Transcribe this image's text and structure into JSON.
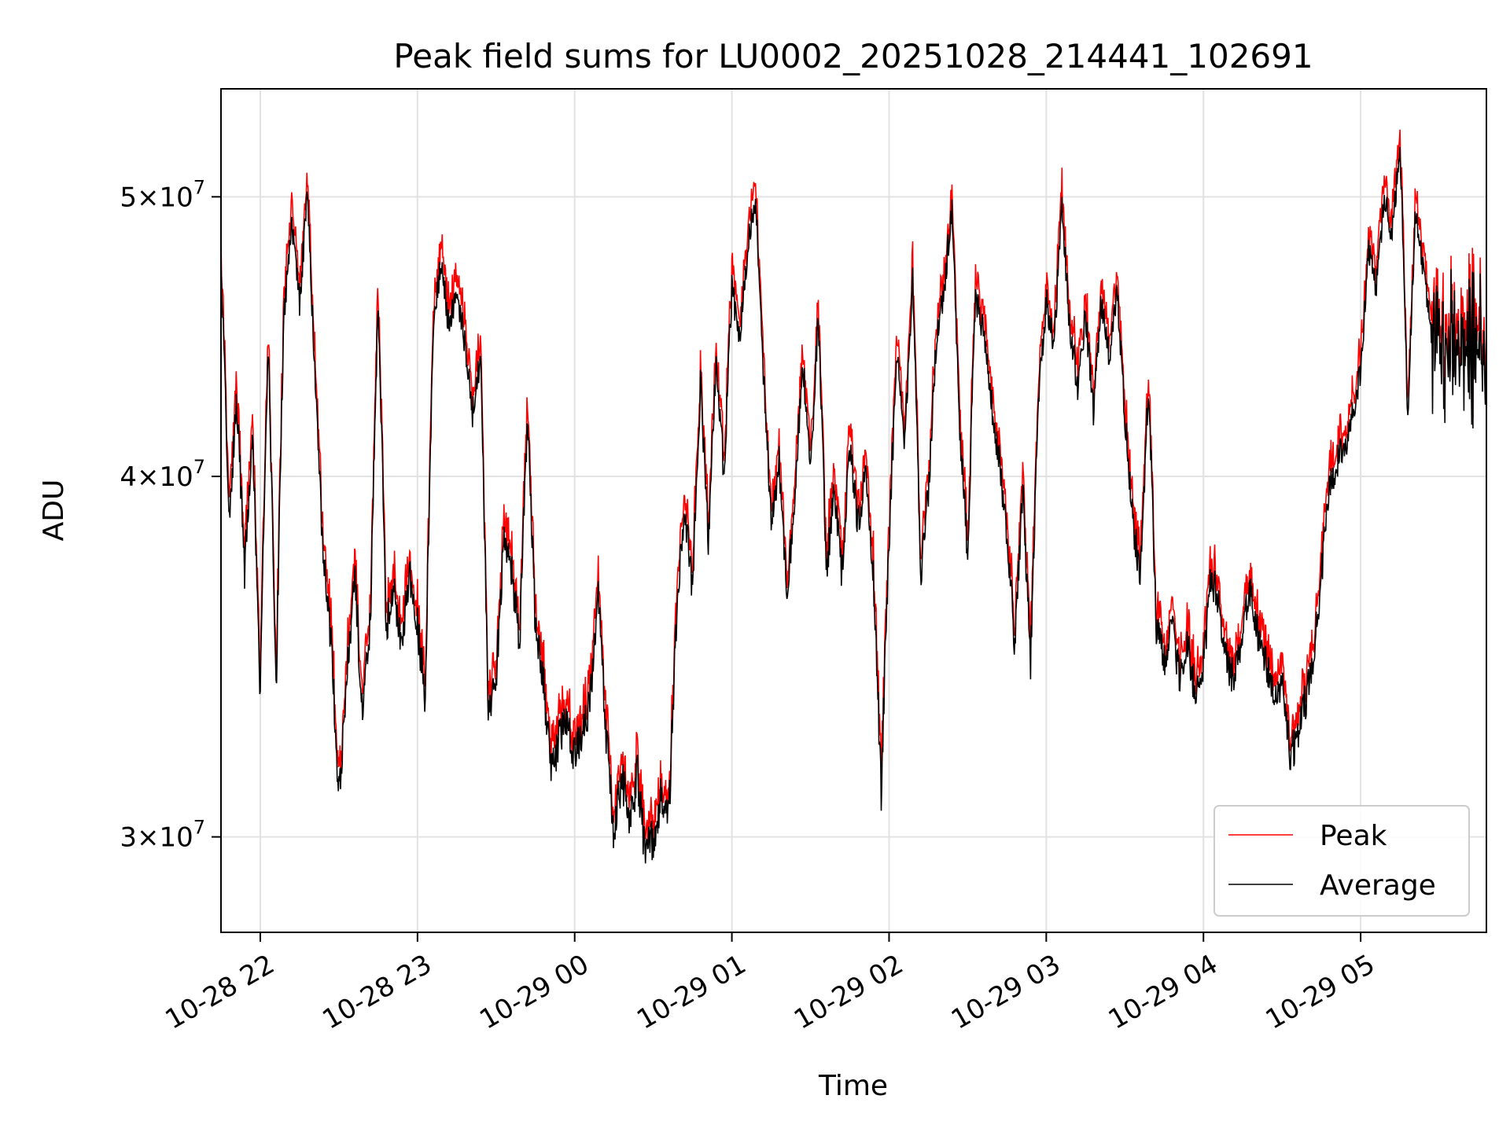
{
  "chart_data": {
    "type": "line",
    "title": "Peak field sums for LU0002_20251028_214441_102691",
    "xlabel": "Time",
    "ylabel": "ADU",
    "yscale": "log",
    "grid": true,
    "legend_position": "lower-right",
    "x_unit": "hours since 2025-10-28 22:00",
    "xlim": [
      -0.25,
      7.8
    ],
    "ylim": [
      27800000,
      54500000
    ],
    "x_ticks": [
      {
        "value": 0,
        "label": "10-28 22"
      },
      {
        "value": 1,
        "label": "10-28 23"
      },
      {
        "value": 2,
        "label": "10-29 00"
      },
      {
        "value": 3,
        "label": "10-29 01"
      },
      {
        "value": 4,
        "label": "10-29 02"
      },
      {
        "value": 5,
        "label": "10-29 03"
      },
      {
        "value": 6,
        "label": "10-29 04"
      },
      {
        "value": 7,
        "label": "10-29 05"
      }
    ],
    "y_ticks": [
      {
        "value": 30000000,
        "mant": "3",
        "exp": "7"
      },
      {
        "value": 40000000,
        "mant": "4",
        "exp": "7"
      },
      {
        "value": 50000000,
        "mant": "5",
        "exp": "7"
      }
    ],
    "y_tick_times": "×10",
    "average_keyframes": [
      [
        -0.25,
        47.5
      ],
      [
        -0.2,
        38.5
      ],
      [
        -0.15,
        42.5
      ],
      [
        -0.1,
        37.0
      ],
      [
        -0.05,
        41.5
      ],
      [
        0.0,
        33.5
      ],
      [
        0.05,
        44.5
      ],
      [
        0.1,
        33.5
      ],
      [
        0.15,
        45.5
      ],
      [
        0.2,
        49.0
      ],
      [
        0.25,
        46.0
      ],
      [
        0.3,
        50.0
      ],
      [
        0.35,
        43.0
      ],
      [
        0.4,
        37.5
      ],
      [
        0.45,
        35.0
      ],
      [
        0.5,
        31.0
      ],
      [
        0.55,
        34.0
      ],
      [
        0.6,
        37.0
      ],
      [
        0.65,
        33.0
      ],
      [
        0.7,
        35.5
      ],
      [
        0.75,
        46.0
      ],
      [
        0.8,
        35.5
      ],
      [
        0.85,
        36.5
      ],
      [
        0.9,
        35.0
      ],
      [
        0.95,
        37.0
      ],
      [
        1.0,
        35.5
      ],
      [
        1.05,
        33.5
      ],
      [
        1.1,
        45.0
      ],
      [
        1.15,
        47.5
      ],
      [
        1.2,
        45.0
      ],
      [
        1.25,
        46.5
      ],
      [
        1.3,
        44.5
      ],
      [
        1.35,
        42.0
      ],
      [
        1.4,
        44.0
      ],
      [
        1.45,
        33.0
      ],
      [
        1.5,
        34.0
      ],
      [
        1.55,
        38.0
      ],
      [
        1.6,
        37.0
      ],
      [
        1.65,
        35.0
      ],
      [
        1.7,
        42.0
      ],
      [
        1.75,
        35.5
      ],
      [
        1.8,
        34.0
      ],
      [
        1.85,
        31.5
      ],
      [
        1.9,
        32.5
      ],
      [
        1.95,
        33.0
      ],
      [
        2.0,
        32.0
      ],
      [
        2.05,
        32.5
      ],
      [
        2.1,
        33.5
      ],
      [
        2.15,
        36.5
      ],
      [
        2.2,
        32.5
      ],
      [
        2.25,
        30.0
      ],
      [
        2.3,
        31.5
      ],
      [
        2.35,
        30.5
      ],
      [
        2.4,
        31.5
      ],
      [
        2.45,
        29.5
      ],
      [
        2.5,
        30.0
      ],
      [
        2.55,
        31.0
      ],
      [
        2.6,
        30.5
      ],
      [
        2.65,
        36.0
      ],
      [
        2.7,
        39.0
      ],
      [
        2.75,
        36.5
      ],
      [
        2.8,
        43.0
      ],
      [
        2.85,
        38.0
      ],
      [
        2.9,
        44.0
      ],
      [
        2.95,
        40.0
      ],
      [
        3.0,
        46.5
      ],
      [
        3.05,
        44.5
      ],
      [
        3.1,
        48.0
      ],
      [
        3.15,
        50.0
      ],
      [
        3.2,
        43.5
      ],
      [
        3.25,
        38.5
      ],
      [
        3.3,
        40.5
      ],
      [
        3.35,
        36.5
      ],
      [
        3.4,
        39.0
      ],
      [
        3.45,
        44.0
      ],
      [
        3.5,
        40.0
      ],
      [
        3.55,
        45.5
      ],
      [
        3.6,
        37.0
      ],
      [
        3.65,
        39.5
      ],
      [
        3.7,
        37.0
      ],
      [
        3.75,
        41.0
      ],
      [
        3.8,
        38.5
      ],
      [
        3.85,
        40.0
      ],
      [
        3.9,
        37.0
      ],
      [
        3.95,
        31.0
      ],
      [
        4.0,
        38.0
      ],
      [
        4.05,
        44.0
      ],
      [
        4.1,
        41.0
      ],
      [
        4.15,
        47.0
      ],
      [
        4.2,
        37.0
      ],
      [
        4.25,
        39.5
      ],
      [
        4.3,
        44.5
      ],
      [
        4.35,
        46.5
      ],
      [
        4.4,
        49.5
      ],
      [
        4.45,
        41.5
      ],
      [
        4.5,
        37.5
      ],
      [
        4.55,
        46.0
      ],
      [
        4.6,
        45.0
      ],
      [
        4.65,
        42.5
      ],
      [
        4.7,
        40.5
      ],
      [
        4.75,
        38.0
      ],
      [
        4.8,
        35.0
      ],
      [
        4.85,
        39.5
      ],
      [
        4.9,
        34.5
      ],
      [
        4.95,
        42.5
      ],
      [
        5.0,
        46.0
      ],
      [
        5.05,
        44.5
      ],
      [
        5.1,
        49.5
      ],
      [
        5.15,
        45.0
      ],
      [
        5.2,
        43.0
      ],
      [
        5.25,
        45.5
      ],
      [
        5.3,
        42.0
      ],
      [
        5.35,
        46.0
      ],
      [
        5.4,
        44.0
      ],
      [
        5.45,
        46.5
      ],
      [
        5.5,
        42.0
      ],
      [
        5.55,
        38.5
      ],
      [
        5.6,
        37.0
      ],
      [
        5.65,
        43.0
      ],
      [
        5.7,
        35.5
      ],
      [
        5.75,
        34.5
      ],
      [
        5.8,
        35.5
      ],
      [
        5.85,
        34.0
      ],
      [
        5.9,
        35.0
      ],
      [
        5.95,
        33.5
      ],
      [
        6.0,
        34.5
      ],
      [
        6.05,
        37.0
      ],
      [
        6.1,
        36.0
      ],
      [
        6.15,
        34.5
      ],
      [
        6.2,
        34.0
      ],
      [
        6.25,
        35.5
      ],
      [
        6.3,
        36.5
      ],
      [
        6.35,
        35.0
      ],
      [
        6.4,
        34.5
      ],
      [
        6.45,
        33.5
      ],
      [
        6.5,
        34.0
      ],
      [
        6.55,
        32.0
      ],
      [
        6.6,
        32.5
      ],
      [
        6.65,
        33.5
      ],
      [
        6.7,
        34.5
      ],
      [
        6.75,
        37.0
      ],
      [
        6.8,
        39.5
      ],
      [
        6.85,
        40.5
      ],
      [
        6.9,
        41.0
      ],
      [
        6.95,
        42.0
      ],
      [
        7.0,
        43.5
      ],
      [
        7.05,
        48.0
      ],
      [
        7.1,
        46.5
      ],
      [
        7.15,
        50.0
      ],
      [
        7.2,
        48.5
      ],
      [
        7.25,
        52.0
      ],
      [
        7.3,
        42.0
      ],
      [
        7.35,
        49.5
      ],
      [
        7.4,
        47.0
      ],
      [
        7.45,
        45.0
      ],
      [
        7.5,
        45.0
      ],
      [
        7.55,
        45.0
      ],
      [
        7.6,
        45.0
      ],
      [
        7.65,
        45.0
      ],
      [
        7.7,
        45.0
      ],
      [
        7.75,
        45.0
      ],
      [
        7.8,
        44.5
      ]
    ],
    "series": [
      {
        "name": "Peak",
        "color": "#ff0000"
      },
      {
        "name": "Average",
        "color": "#000000"
      }
    ]
  }
}
